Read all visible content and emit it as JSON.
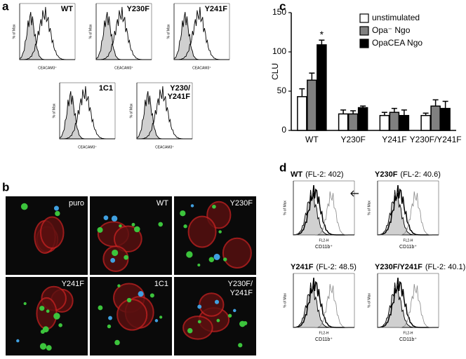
{
  "panel_labels": [
    "a",
    "b",
    "c",
    "d"
  ],
  "flow_cytometry_a": {
    "y_label": "% of Max",
    "x_label": "CEACAM3⁺",
    "plots": [
      {
        "label": [
          "WT"
        ]
      },
      {
        "label": [
          "Y230F"
        ]
      },
      {
        "label": [
          "Y241F"
        ]
      },
      {
        "label": [
          "1C1"
        ]
      },
      {
        "label": [
          "Y230/",
          "Y241F"
        ]
      }
    ]
  },
  "microscopy_b": {
    "labels": [
      [
        "puro"
      ],
      [
        "WT"
      ],
      [
        "Y230F"
      ],
      [
        "Y241F"
      ],
      [
        "1C1"
      ],
      [
        "Y230F/",
        "Y241F"
      ]
    ]
  },
  "chart_data": {
    "type": "bar",
    "y_label": "CLU",
    "categories": [
      "WT",
      "Y230F",
      "Y241F",
      "Y230F/Y241F"
    ],
    "series": [
      {
        "name": "unstimulated",
        "color": "#ffffff",
        "values": [
          43,
          21,
          19,
          19
        ],
        "errors": [
          10,
          5,
          4,
          3
        ]
      },
      {
        "name": "Opa⁻ Ngo",
        "color": "#808080",
        "values": [
          64,
          21,
          23,
          31
        ],
        "errors": [
          9,
          4,
          5,
          8
        ]
      },
      {
        "name": "OpaCEA Ngo",
        "color": "#000000",
        "values": [
          109,
          29,
          19,
          28
        ],
        "errors": [
          6,
          2,
          7,
          9
        ]
      }
    ],
    "annotations": [
      {
        "text": "*"
      }
    ],
    "ylim": [
      0,
      150
    ],
    "yticks": [
      0,
      50,
      100,
      150
    ],
    "legend": "top-right"
  },
  "flow_cytometry_d": {
    "y_label": "% of Max",
    "x_label": "CD11b⁺",
    "x_axis_label": "FL2-H",
    "plots": [
      {
        "title": "WT",
        "detail": "(FL-2: 402)"
      },
      {
        "title": "Y230F",
        "detail": "(FL-2: 40.6)"
      },
      {
        "title": "Y241F",
        "detail": "(FL-2: 48.5)"
      },
      {
        "title": "Y230F/Y241F",
        "detail": "(FL-2: 40.1)"
      }
    ]
  }
}
